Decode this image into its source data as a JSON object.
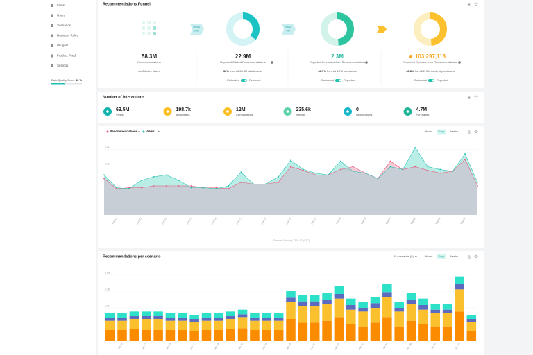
{
  "sidebar": {
    "items": [
      "Items",
      "Users",
      "Scenarios",
      "Business Rules",
      "Widgets",
      "Product Feed",
      "Settings"
    ],
    "quality_label": "Data Quality Score",
    "quality_value": {
      "value": 43,
      "label": "43 %"
    }
  },
  "funnel": {
    "title": "Recommendations Funnel",
    "columns": [
      {
        "value": "58.3M",
        "label": "Recommendations",
        "note": "for 0 Active Users",
        "value_color": "#222222"
      },
      {
        "value": "22.9M",
        "label": "Reported Clicked Recommendations",
        "percent": 36,
        "percent_label": "36%",
        "note": "from all 63.5M detail views",
        "toggle": [
          "Estimated",
          "Reported"
        ],
        "color": "#1cc3c3",
        "track": "#d3f3f5",
        "value_color": "#222222"
      },
      {
        "value": "2.3M",
        "label": "Reported Purchases from Recommendations",
        "percent": 48.7,
        "percent_label": "48.7%",
        "note": "from all 4.7M purchases",
        "toggle": [
          "Estimated",
          "Reported"
        ],
        "color": "#2ec4a0",
        "track": "#d2f3ea",
        "value_color": "#2ab7a0"
      },
      {
        "value": "103,297,118",
        "label": "Reported Revenue from Recommendations",
        "percent": 48.8,
        "percent_label": "48.8%",
        "note": "from 211.5M worth of purchases",
        "toggle": [
          "Estimated",
          "Reported"
        ],
        "color": "#fbc02d",
        "track": "#fdeec0",
        "value_color": "#f5a623"
      }
    ],
    "arrows": [
      {
        "value": "39.3%",
        "label": "CTR"
      },
      {
        "value": "3.9%",
        "label": "CR"
      }
    ]
  },
  "interactions": {
    "title": "Number of Interactions",
    "items": [
      {
        "value": "63.5M",
        "label": "Views",
        "color": "#12b3ad"
      },
      {
        "value": "198.7k",
        "label": "Bookmarks",
        "color": "#fbbf24"
      },
      {
        "value": "12M",
        "label": "Cart Additions",
        "color": "#fbbf24"
      },
      {
        "value": "235.6k",
        "label": "Ratings",
        "color": "#5fd3a8"
      },
      {
        "value": "0",
        "label": "view portions",
        "color": "#17b7c9"
      },
      {
        "value": "4.7M",
        "label": "Purchases",
        "color": "#22b59a"
      }
    ]
  },
  "period_buttons": [
    "Hours",
    "Days",
    "Weeks"
  ],
  "scenario_filter": "All scenarios (8)",
  "line_footer": "Scenario Building 23.01.01 (UTC)",
  "chart_data": [
    {
      "type": "line",
      "categories": [
        null,
        "Feb 11",
        null,
        "Feb 13",
        null,
        "Feb 15",
        null,
        "Feb 17",
        null,
        "Feb 19",
        null,
        "Feb 21",
        null,
        "Feb 23",
        null,
        "Feb 25",
        null,
        "Feb 27",
        null,
        "Feb 29",
        null,
        "Mar 02",
        null,
        "Mar 04",
        null,
        "Mar 06",
        null,
        "Mar 08",
        null,
        "Mar 10",
        null
      ],
      "series": [
        {
          "name": "Recommendations",
          "color": "#e8577a",
          "values": [
            2.0,
            1.45,
            1.5,
            1.5,
            1.6,
            1.6,
            1.6,
            1.6,
            1.5,
            1.5,
            1.45,
            1.8,
            1.7,
            1.7,
            1.8,
            2.65,
            2.45,
            2.2,
            2.2,
            2.5,
            2.65,
            2.3,
            2.0,
            2.95,
            2.5,
            2.65,
            2.45,
            2.3,
            2.4,
            3.05,
            1.6
          ]
        },
        {
          "name": "Views",
          "color": "#1fc2b0",
          "values": [
            2.2,
            1.5,
            1.45,
            1.9,
            2.1,
            2.2,
            1.9,
            1.5,
            1.5,
            1.45,
            1.6,
            2.35,
            1.7,
            1.7,
            2.1,
            3.0,
            2.5,
            2.3,
            2.2,
            2.95,
            2.4,
            2.3,
            2.0,
            2.65,
            2.5,
            3.7,
            2.65,
            2.5,
            2.4,
            3.35,
            1.8
          ]
        }
      ],
      "ylim": [
        0,
        4
      ],
      "yticks": [
        {
          "value": 0.9,
          "label": "0.9M"
        },
        {
          "value": 1.8,
          "label": "1.8M"
        },
        {
          "value": 2.7,
          "label": "2.7M"
        },
        {
          "value": 3.6,
          "label": "3.6M"
        }
      ],
      "grid": true
    },
    {
      "type": "stacked_bar",
      "title": "Recommendations per scenario",
      "categories": [
        null,
        "Feb 11",
        null,
        "Feb 13",
        null,
        "Feb 15",
        null,
        "Feb 17",
        null,
        "Feb 19",
        null,
        "Feb 21",
        null,
        "Feb 23",
        null,
        "Feb 25",
        null,
        "Feb 27",
        null,
        "Feb 29",
        null,
        "Mar 02",
        null,
        "Mar 04",
        null,
        "Mar 06",
        null,
        "Mar 08",
        null,
        "Mar 10",
        null
      ],
      "series": [
        {
          "color": "#fb8c00",
          "values": [
            0.6,
            0.6,
            0.65,
            0.6,
            0.6,
            0.6,
            0.6,
            0.55,
            0.6,
            0.6,
            0.65,
            0.7,
            0.6,
            0.6,
            0.6,
            1.2,
            1.0,
            1.0,
            1.1,
            1.3,
            0.9,
            0.8,
            1.0,
            1.3,
            0.8,
            1.1,
            0.9,
            0.8,
            0.8,
            1.6,
            0.55
          ]
        },
        {
          "color": "#fbc02d",
          "values": [
            0.5,
            0.5,
            0.55,
            0.6,
            0.6,
            0.5,
            0.5,
            0.5,
            0.5,
            0.5,
            0.55,
            0.6,
            0.5,
            0.5,
            0.5,
            0.9,
            0.9,
            0.9,
            0.9,
            1.0,
            0.8,
            0.8,
            0.8,
            1.1,
            0.8,
            0.9,
            0.8,
            0.7,
            0.7,
            1.2,
            0.5
          ]
        },
        {
          "color": "#5c6bc0",
          "values": [
            0.15,
            0.15,
            0.15,
            0.15,
            0.15,
            0.15,
            0.15,
            0.15,
            0.15,
            0.15,
            0.15,
            0.15,
            0.15,
            0.15,
            0.15,
            0.25,
            0.25,
            0.25,
            0.25,
            0.25,
            0.25,
            0.2,
            0.25,
            0.25,
            0.2,
            0.25,
            0.25,
            0.2,
            0.2,
            0.3,
            0.15
          ]
        },
        {
          "color": "#2de0c8",
          "values": [
            0.25,
            0.25,
            0.25,
            0.25,
            0.25,
            0.25,
            0.25,
            0.2,
            0.25,
            0.25,
            0.25,
            0.25,
            0.25,
            0.25,
            0.25,
            0.35,
            0.35,
            0.35,
            0.35,
            0.45,
            0.35,
            0.3,
            0.35,
            0.45,
            0.3,
            0.35,
            0.35,
            0.3,
            0.3,
            0.4,
            0.2
          ]
        }
      ],
      "ylim": [
        0,
        3.9
      ],
      "yticks": [
        {
          "value": 0.9,
          "label": "0.9M"
        },
        {
          "value": 1.8,
          "label": "1.8M"
        },
        {
          "value": 2.7,
          "label": "2.7M"
        },
        {
          "value": 3.6,
          "label": "3.6M"
        }
      ],
      "grid": true
    }
  ]
}
